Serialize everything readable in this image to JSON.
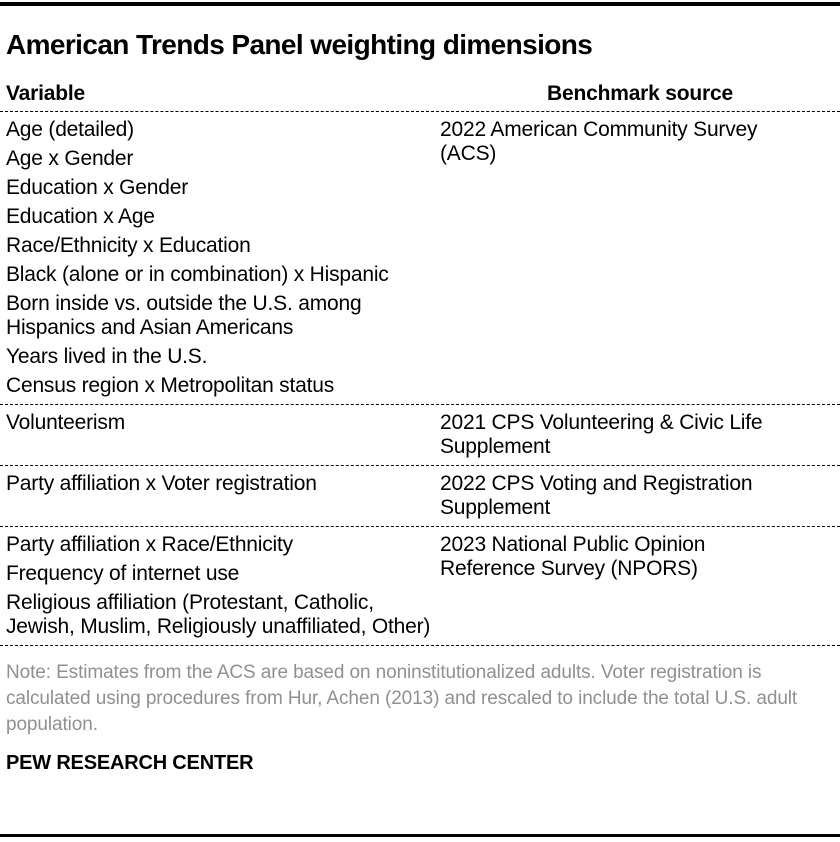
{
  "title": "American Trends Panel weighting dimensions",
  "table": {
    "headers": {
      "variable": "Variable",
      "benchmark": "Benchmark source"
    },
    "groups": [
      {
        "variables": [
          "Age (detailed)",
          "Age x Gender",
          "Education x Gender",
          "Education x Age",
          "Race/Ethnicity x Education",
          "Black (alone or in combination) x Hispanic",
          "Born inside vs. outside the U.S. among Hispanics and Asian Americans",
          "Years lived in the U.S.",
          "Census region x Metropolitan status"
        ],
        "benchmark": "2022 American Community Survey (ACS)"
      },
      {
        "variables": [
          "Volunteerism"
        ],
        "benchmark": "2021 CPS Volunteering & Civic Life Supplement"
      },
      {
        "variables": [
          "Party affiliation x Voter registration"
        ],
        "benchmark": "2022 CPS Voting and Registration Supplement"
      },
      {
        "variables": [
          "Party affiliation x Race/Ethnicity",
          "Frequency of internet use",
          "Religious affiliation (Protestant, Catholic, Jewish, Muslim, Religiously unaffiliated, Other)"
        ],
        "benchmark": "2023 National Public Opinion Reference Survey (NPORS)"
      }
    ]
  },
  "note": "Note: Estimates from the ACS are based on noninstitutionalized adults. Voter registration is calculated using procedures from Hur, Achen (2013) and rescaled to include the total U.S. adult population.",
  "footer": "PEW RESEARCH CENTER",
  "colors": {
    "text": "#000000",
    "note_text": "#909090",
    "bars": "#000000",
    "separators": "#000000"
  },
  "chart_data": {
    "type": "table",
    "title": "American Trends Panel weighting dimensions",
    "columns": [
      "Variable",
      "Benchmark source"
    ],
    "rows": [
      {
        "variables": [
          "Age (detailed)",
          "Age x Gender",
          "Education x Gender",
          "Education x Age",
          "Race/Ethnicity x Education",
          "Black (alone or in combination) x Hispanic",
          "Born inside vs. outside the U.S. among Hispanics and Asian Americans",
          "Years lived in the U.S.",
          "Census region x Metropolitan status"
        ],
        "benchmark_source": "2022 American Community Survey (ACS)"
      },
      {
        "variables": [
          "Volunteerism"
        ],
        "benchmark_source": "2021 CPS Volunteering & Civic Life Supplement"
      },
      {
        "variables": [
          "Party affiliation x Voter registration"
        ],
        "benchmark_source": "2022 CPS Voting and Registration Supplement"
      },
      {
        "variables": [
          "Party affiliation x Race/Ethnicity",
          "Frequency of internet use",
          "Religious affiliation (Protestant, Catholic, Jewish, Muslim, Religiously unaffiliated, Other)"
        ],
        "benchmark_source": "2023 National Public Opinion Reference Survey (NPORS)"
      }
    ],
    "layout": {
      "grid": "dashed horizontal separators",
      "header_alignment": {
        "variable": "left",
        "benchmark_source": "center"
      }
    }
  }
}
